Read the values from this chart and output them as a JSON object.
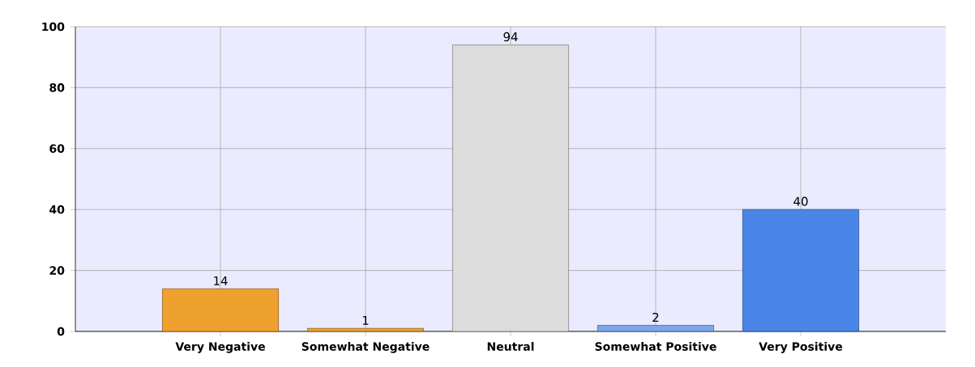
{
  "chart_data": {
    "type": "bar",
    "categories": [
      "Very Negative",
      "Somewhat Negative",
      "Neutral",
      "Somewhat Positive",
      "Very Positive"
    ],
    "values": [
      14,
      1,
      94,
      2,
      40
    ],
    "colors": [
      "#eea12e",
      "#eea12e",
      "#dcdcdc",
      "#7ea6ea",
      "#4a86e8"
    ],
    "ylim": [
      0,
      100
    ],
    "yticks": [
      0,
      20,
      40,
      60,
      80,
      100
    ],
    "grid": true,
    "data_labels": true
  }
}
